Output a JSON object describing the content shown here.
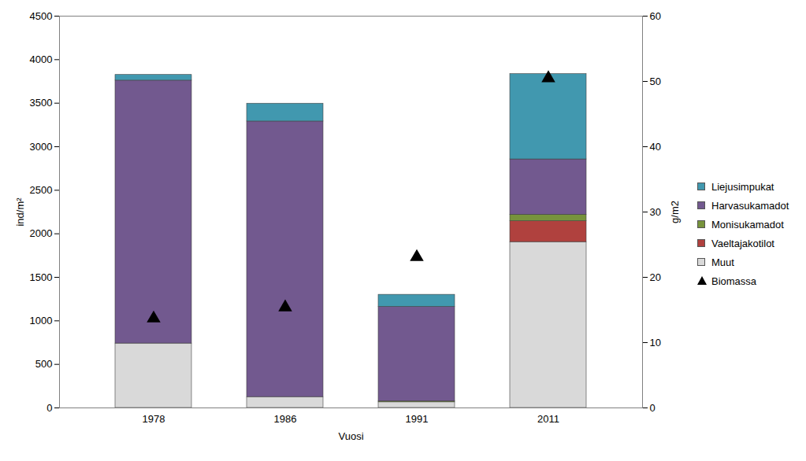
{
  "chart_data": {
    "type": "bar",
    "stacked": true,
    "x_label": "Vuosi",
    "y_label": "ind/m²",
    "y2_label": "g/m2",
    "categories": [
      "1978",
      "1986",
      "1991",
      "2011"
    ],
    "ylim": [
      0,
      4500
    ],
    "yticks": [
      0,
      500,
      1000,
      1500,
      2000,
      2500,
      3000,
      3500,
      4000,
      4500
    ],
    "y2lim": [
      0,
      60
    ],
    "y2ticks": [
      0,
      10,
      20,
      30,
      40,
      50,
      60
    ],
    "grid": false,
    "legend": "right",
    "series": [
      {
        "name": "Muut",
        "type": "bar",
        "color": "#d9d9d9",
        "values": [
          740,
          125,
          65,
          1905
        ]
      },
      {
        "name": "Vaeltajakotilot",
        "type": "bar",
        "color": "#b0413e",
        "values": [
          0,
          0,
          0,
          240
        ]
      },
      {
        "name": "Monisukamadot",
        "type": "bar",
        "color": "#77933c",
        "values": [
          0,
          0,
          10,
          75
        ]
      },
      {
        "name": "Harvasukamadot",
        "type": "bar",
        "color": "#72598f",
        "values": [
          3020,
          3165,
          1085,
          635
        ]
      },
      {
        "name": "Liejusimpukat",
        "type": "bar",
        "color": "#4198af",
        "values": [
          65,
          205,
          140,
          980
        ]
      },
      {
        "name": "Biomassa",
        "type": "scatter",
        "marker": "triangle",
        "axis": "y2",
        "color": "#000000",
        "values": [
          13.7,
          15.4,
          23.1,
          50.5
        ]
      }
    ]
  }
}
